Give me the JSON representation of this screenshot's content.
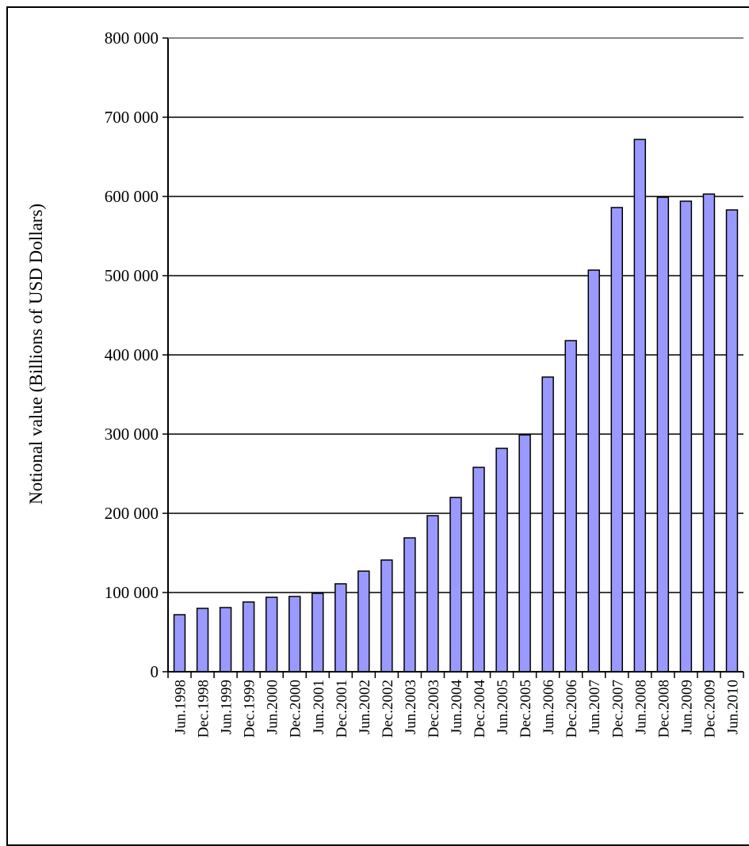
{
  "chart_data": {
    "type": "bar",
    "ylabel": "Notional value (Billions of USD Dollars)",
    "xlabel": "",
    "ylim": [
      0,
      800000
    ],
    "yticks": [
      0,
      100000,
      200000,
      300000,
      400000,
      500000,
      600000,
      700000,
      800000
    ],
    "ytick_labels": [
      "0",
      "100 000",
      "200 000",
      "300 000",
      "400 000",
      "500 000",
      "600 000",
      "700 000",
      "800 000"
    ],
    "grid": "horizontal",
    "categories": [
      "Jun.1998",
      "Dec.1998",
      "Jun.1999",
      "Dec.1999",
      "Jun.2000",
      "Dec.2000",
      "Jun.2001",
      "Dec.2001",
      "Jun.2002",
      "Dec.2002",
      "Jun.2003",
      "Dec.2003",
      "Jun.2004",
      "Dec.2004",
      "Jun.2005",
      "Dec.2005",
      "Jun.2006",
      "Dec.2006",
      "Jun.2007",
      "Dec.2007",
      "Jun.2008",
      "Dec.2008",
      "Jun.2009",
      "Dec.2009",
      "Jun.2010"
    ],
    "values": [
      72000,
      80000,
      81000,
      88000,
      94000,
      95000,
      99000,
      111000,
      127000,
      141000,
      169000,
      197000,
      220000,
      258000,
      282000,
      299000,
      372000,
      418000,
      507000,
      586000,
      672000,
      599000,
      594000,
      603000,
      583000
    ],
    "bar_color": "#9999ff",
    "bar_edge_color": "#000000"
  }
}
